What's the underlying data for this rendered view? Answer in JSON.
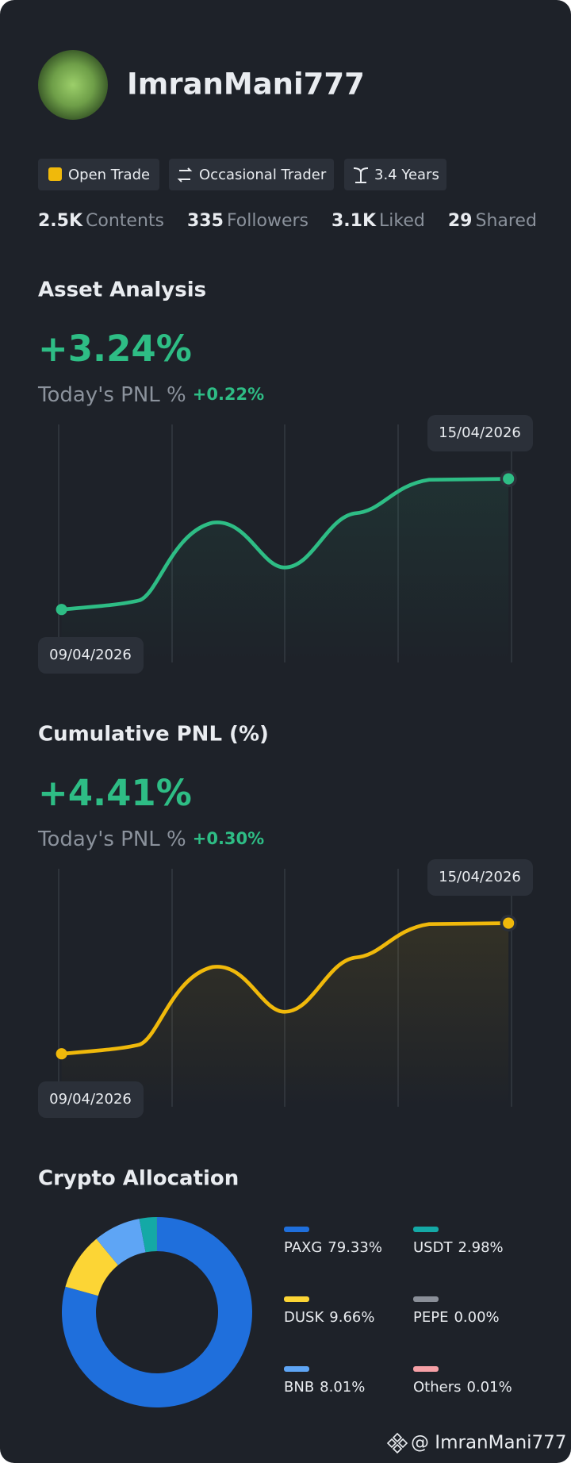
{
  "profile": {
    "name": "ImranMani777"
  },
  "tags": [
    "Open Trade",
    "Occasional Trader",
    "3.4 Years"
  ],
  "stats": [
    {
      "value": "2.5K",
      "label": "Contents"
    },
    {
      "value": "335",
      "label": "Followers"
    },
    {
      "value": "3.1K",
      "label": "Liked"
    },
    {
      "value": "29",
      "label": "Shared"
    }
  ],
  "asset_analysis": {
    "title": "Asset Analysis",
    "change": "+3.24%",
    "today_label": "Today's PNL %",
    "today_change": "+0.22%",
    "start_date": "09/04/2026",
    "end_date": "15/04/2026"
  },
  "cumulative_pnl": {
    "title": "Cumulative PNL (%)",
    "change": "+4.41%",
    "today_label": "Today's PNL %",
    "today_change": "+0.30%",
    "start_date": "09/04/2026",
    "end_date": "15/04/2026"
  },
  "chart_data": {
    "type": "pie",
    "donut": true,
    "title": "Crypto Allocation",
    "categories": [
      "PAXG",
      "USDT",
      "DUSK",
      "PEPE",
      "BNB",
      "Others"
    ],
    "values": [
      79.33,
      2.98,
      9.66,
      0.0,
      8.01,
      0.01
    ],
    "value_labels": [
      "79.33%",
      "2.98%",
      "9.66%",
      "0.00%",
      "8.01%",
      "0.01%"
    ],
    "colors": [
      "#1f6fdc",
      "#14a9a6",
      "#fcd535",
      "#8a8f98",
      "#5ea5f5",
      "#f6a0a6"
    ]
  },
  "footer": {
    "handle": "@ ImranMani777"
  }
}
